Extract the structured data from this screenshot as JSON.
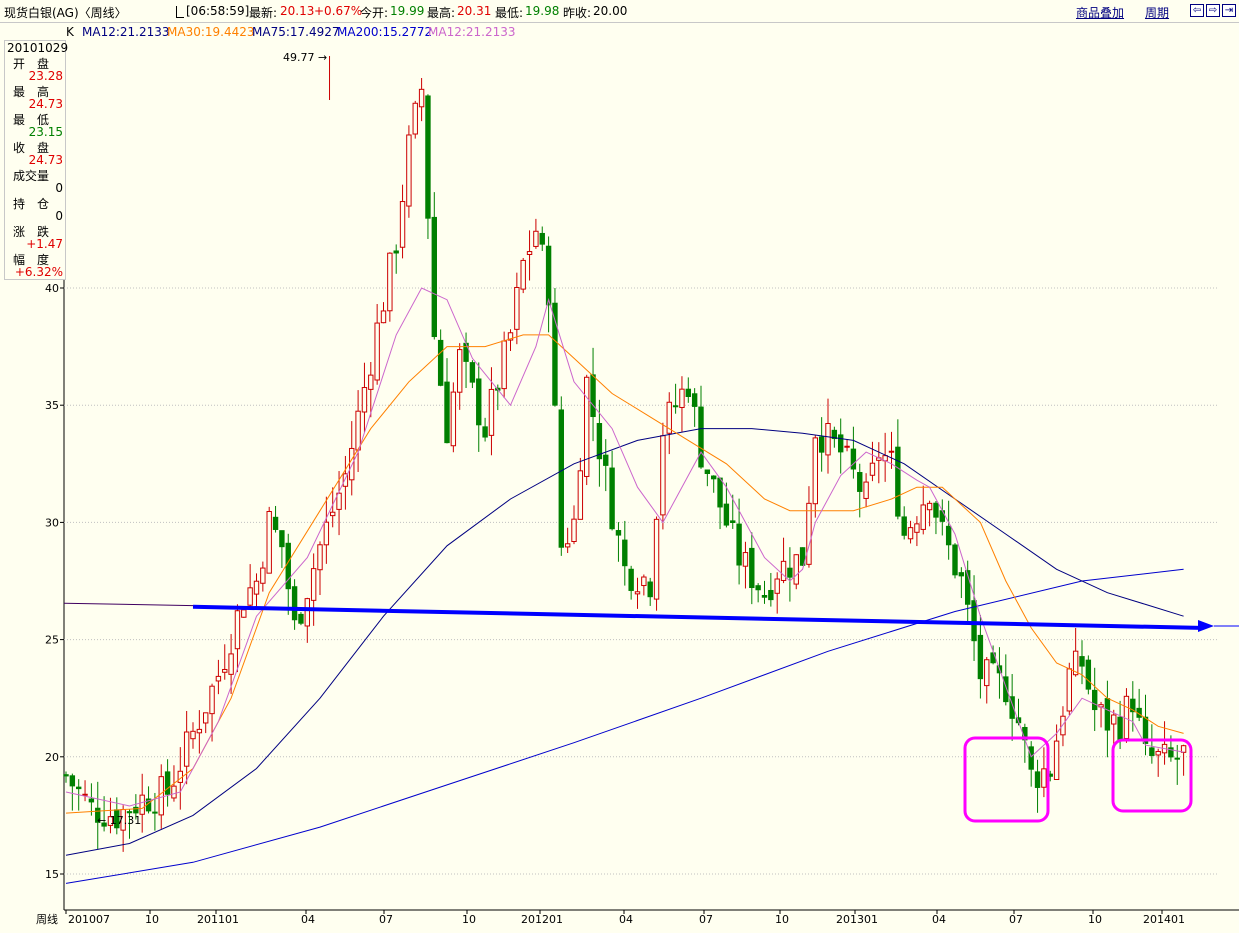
{
  "header": {
    "instrument": "现货白银(AG)〈周线〉",
    "time": "[06:58:59]",
    "last_label": "最新:",
    "last_value": "20.13",
    "change_pct": "+0.67%",
    "open_label": "今开:",
    "open_value": "19.99",
    "high_label": "最高:",
    "high_value": "20.31",
    "low_label": "最低:",
    "low_value": "19.98",
    "prev_label": "昨收:",
    "prev_value": "20.00",
    "overlay_link": "商品叠加",
    "period_link": "周期",
    "nav_left": "⇦",
    "nav_right": "⇨",
    "nav_end": "⇥"
  },
  "legend": {
    "k": "K",
    "ma12": "MA12:21.2133",
    "ma30": "MA30:19.4423",
    "ma75": "MA75:17.4927",
    "ma200": "MA200:15.2772",
    "ma12b": "MA12:21.2133"
  },
  "info": {
    "date": "20101029",
    "open_label": "开盘",
    "open": "23.28",
    "high_label": "最高",
    "high": "24.73",
    "low_label": "最低",
    "low": "23.15",
    "close_label": "收盘",
    "close": "24.73",
    "volume_label": "成交量",
    "volume": "0",
    "oi_label": "持仓",
    "oi": "0",
    "chg_label": "涨跌",
    "chg": "+1.47",
    "amp_label": "幅度",
    "amp": "+6.32%"
  },
  "colors": {
    "up": "#cc0000",
    "down": "#008000",
    "ma12": "#cc66cc",
    "ma30": "#ff8000",
    "ma75": "#000080",
    "ma200": "#0000cc",
    "trend": "#0000ff",
    "box": "#ff00ff",
    "grid": "#c0c0c0"
  },
  "chart_data": {
    "type": "candlestick",
    "title": "现货白银(AG)〈周线〉",
    "period_label": "周线",
    "y_ticks": [
      15,
      20,
      25,
      30,
      35,
      40
    ],
    "ylim": [
      14,
      51
    ],
    "x_ticks": [
      "201007",
      "10",
      "201101",
      "04",
      "07",
      "10",
      "201201",
      "04",
      "07",
      "10",
      "201301",
      "04",
      "07",
      "10",
      "201401"
    ],
    "annotations": {
      "max_label": "49.77",
      "min_label": "17.31"
    },
    "price_path": [
      [
        0,
        19.2
      ],
      [
        4,
        17.8
      ],
      [
        8,
        17.5
      ],
      [
        12,
        18.2
      ],
      [
        16,
        18.5
      ],
      [
        20,
        21
      ],
      [
        24,
        23.5
      ],
      [
        28,
        26.8
      ],
      [
        30,
        27.5
      ],
      [
        32,
        30
      ],
      [
        34,
        29
      ],
      [
        36,
        25.5
      ],
      [
        40,
        29
      ],
      [
        44,
        32
      ],
      [
        48,
        37
      ],
      [
        52,
        42
      ],
      [
        54,
        46
      ],
      [
        56,
        48.5
      ],
      [
        58,
        38
      ],
      [
        60,
        34
      ],
      [
        62,
        37
      ],
      [
        66,
        34
      ],
      [
        70,
        38
      ],
      [
        72,
        41
      ],
      [
        74,
        42.5
      ],
      [
        76,
        40
      ],
      [
        78,
        29
      ],
      [
        80,
        30
      ],
      [
        82,
        36
      ],
      [
        86,
        30.5
      ],
      [
        88,
        28
      ],
      [
        92,
        27.5
      ],
      [
        94,
        34
      ],
      [
        98,
        36
      ],
      [
        100,
        33
      ],
      [
        104,
        30
      ],
      [
        106,
        28.5
      ],
      [
        110,
        27
      ],
      [
        112,
        28
      ],
      [
        116,
        28.5
      ],
      [
        118,
        34
      ],
      [
        122,
        33
      ],
      [
        124,
        32
      ],
      [
        126,
        31
      ],
      [
        128,
        33
      ],
      [
        130,
        32.5
      ],
      [
        132,
        29.5
      ],
      [
        136,
        31.5
      ],
      [
        138,
        29.5
      ],
      [
        141,
        27.5
      ],
      [
        144,
        23.5
      ],
      [
        148,
        23
      ],
      [
        150,
        21.5
      ],
      [
        152,
        19.2
      ],
      [
        155,
        19.5
      ],
      [
        158,
        23.5
      ],
      [
        160,
        24
      ],
      [
        162,
        22
      ],
      [
        164,
        21.5
      ],
      [
        166,
        21.5
      ],
      [
        168,
        22.5
      ],
      [
        170,
        20
      ],
      [
        174,
        19.8
      ],
      [
        176,
        20.1
      ]
    ],
    "ma12_path": [
      [
        0,
        18.5
      ],
      [
        10,
        17.9
      ],
      [
        18,
        18.5
      ],
      [
        24,
        21.5
      ],
      [
        30,
        26
      ],
      [
        38,
        28.5
      ],
      [
        46,
        33
      ],
      [
        52,
        38
      ],
      [
        56,
        40
      ],
      [
        60,
        39.5
      ],
      [
        64,
        37
      ],
      [
        70,
        35
      ],
      [
        74,
        37.5
      ],
      [
        76,
        39.5
      ],
      [
        80,
        36
      ],
      [
        86,
        34
      ],
      [
        90,
        31.5
      ],
      [
        94,
        30
      ],
      [
        98,
        32
      ],
      [
        100,
        33
      ],
      [
        104,
        31.5
      ],
      [
        110,
        28.5
      ],
      [
        114,
        27.5
      ],
      [
        116,
        28
      ],
      [
        118,
        30
      ],
      [
        122,
        32
      ],
      [
        126,
        33
      ],
      [
        130,
        32.5
      ],
      [
        134,
        31.8
      ],
      [
        136,
        31.5
      ],
      [
        140,
        29.5
      ],
      [
        144,
        26
      ],
      [
        148,
        23
      ],
      [
        150,
        21.5
      ],
      [
        152,
        20
      ],
      [
        156,
        21
      ],
      [
        160,
        22.5
      ],
      [
        164,
        22
      ],
      [
        168,
        21.5
      ],
      [
        170,
        20.5
      ],
      [
        176,
        20.2
      ]
    ],
    "ma30_path": [
      [
        0,
        17.6
      ],
      [
        12,
        17.8
      ],
      [
        20,
        19.5
      ],
      [
        26,
        22.5
      ],
      [
        32,
        27
      ],
      [
        40,
        30.5
      ],
      [
        48,
        34
      ],
      [
        54,
        36
      ],
      [
        60,
        37.5
      ],
      [
        66,
        37.5
      ],
      [
        72,
        38
      ],
      [
        76,
        38
      ],
      [
        80,
        37
      ],
      [
        86,
        35.5
      ],
      [
        92,
        34.5
      ],
      [
        98,
        33.5
      ],
      [
        104,
        32.5
      ],
      [
        110,
        31
      ],
      [
        114,
        30.5
      ],
      [
        118,
        30.5
      ],
      [
        124,
        30.5
      ],
      [
        130,
        31
      ],
      [
        134,
        31.5
      ],
      [
        138,
        31.5
      ],
      [
        140,
        31
      ],
      [
        144,
        30
      ],
      [
        148,
        27.5
      ],
      [
        152,
        25.5
      ],
      [
        156,
        24
      ],
      [
        160,
        23.5
      ],
      [
        164,
        22.5
      ],
      [
        168,
        22
      ],
      [
        172,
        21.3
      ],
      [
        176,
        21
      ]
    ],
    "ma75_path": [
      [
        0,
        15.8
      ],
      [
        10,
        16.3
      ],
      [
        20,
        17.5
      ],
      [
        30,
        19.5
      ],
      [
        40,
        22.5
      ],
      [
        50,
        26
      ],
      [
        60,
        29
      ],
      [
        70,
        31
      ],
      [
        80,
        32.5
      ],
      [
        90,
        33.5
      ],
      [
        100,
        34
      ],
      [
        108,
        34
      ],
      [
        116,
        33.8
      ],
      [
        124,
        33.5
      ],
      [
        132,
        32.5
      ],
      [
        140,
        31
      ],
      [
        148,
        29.5
      ],
      [
        156,
        28
      ],
      [
        164,
        27
      ],
      [
        170,
        26.5
      ],
      [
        176,
        26
      ]
    ],
    "ma200_path": [
      [
        0,
        14.6
      ],
      [
        20,
        15.5
      ],
      [
        40,
        17.0
      ],
      [
        60,
        18.8
      ],
      [
        80,
        20.6
      ],
      [
        100,
        22.5
      ],
      [
        120,
        24.5
      ],
      [
        140,
        26.2
      ],
      [
        160,
        27.5
      ],
      [
        176,
        28
      ]
    ],
    "trend_line": [
      [
        20,
        26.4
      ],
      [
        177,
        25.5
      ]
    ]
  }
}
